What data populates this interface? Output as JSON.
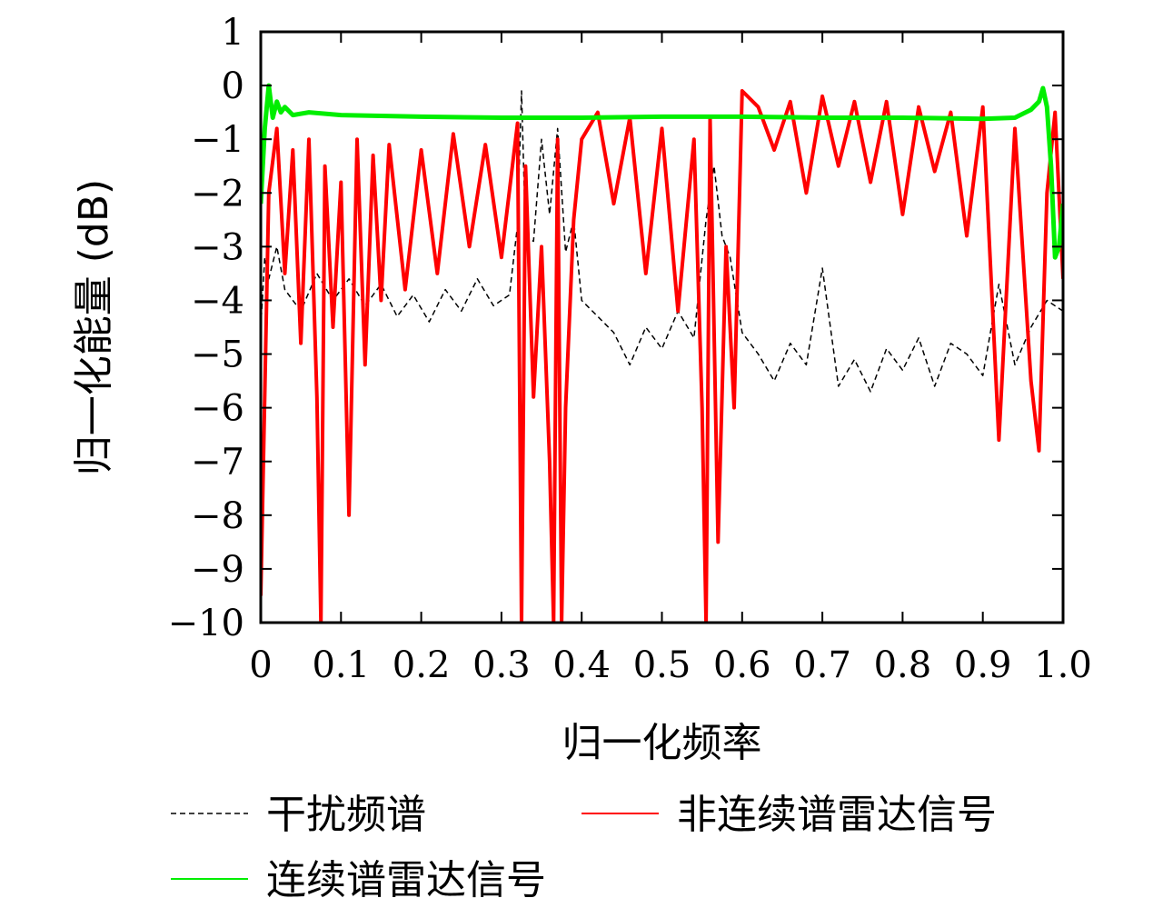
{
  "chart_data": {
    "type": "line",
    "title": "",
    "xlabel": "归一化频率",
    "ylabel": "归一化能量 (dB)",
    "xlim": [
      0,
      1.0
    ],
    "ylim": [
      -10,
      1
    ],
    "xticks": [
      0,
      0.1,
      0.2,
      0.3,
      0.4,
      0.5,
      0.6,
      0.7,
      0.8,
      0.9,
      1.0
    ],
    "xtick_labels": [
      "0",
      "0.1",
      "0.2",
      "0.3",
      "0.4",
      "0.5",
      "0.6",
      "0.7",
      "0.8",
      "0.9",
      "1.0"
    ],
    "yticks": [
      1,
      0,
      -1,
      -2,
      -3,
      -4,
      -5,
      -6,
      -7,
      -8,
      -9,
      -10
    ],
    "ytick_labels": [
      "1",
      "0",
      "−1",
      "−2",
      "−3",
      "−4",
      "−5",
      "−6",
      "−7",
      "−8",
      "−9",
      "−10"
    ],
    "grid": false,
    "legend_position": "bottom",
    "series": [
      {
        "name": "干扰频谱",
        "color": "#000000",
        "style": "dashed",
        "x": [
          0,
          0.005,
          0.01,
          0.02,
          0.03,
          0.05,
          0.07,
          0.09,
          0.11,
          0.13,
          0.15,
          0.17,
          0.19,
          0.21,
          0.23,
          0.25,
          0.27,
          0.29,
          0.31,
          0.32,
          0.325,
          0.33,
          0.34,
          0.35,
          0.36,
          0.37,
          0.38,
          0.39,
          0.4,
          0.42,
          0.44,
          0.46,
          0.48,
          0.5,
          0.52,
          0.54,
          0.555,
          0.565,
          0.575,
          0.585,
          0.6,
          0.62,
          0.64,
          0.66,
          0.68,
          0.7,
          0.72,
          0.74,
          0.76,
          0.78,
          0.8,
          0.82,
          0.84,
          0.86,
          0.88,
          0.9,
          0.92,
          0.94,
          0.96,
          0.98,
          1.0
        ],
        "y": [
          -4.5,
          -3.2,
          -3.6,
          -3.0,
          -3.8,
          -4.2,
          -3.5,
          -4.0,
          -3.6,
          -4.1,
          -3.7,
          -4.3,
          -3.9,
          -4.4,
          -3.8,
          -4.2,
          -3.6,
          -4.1,
          -3.9,
          -2.6,
          -0.1,
          -2.8,
          -2.9,
          -1.0,
          -2.4,
          -0.8,
          -3.1,
          -2.5,
          -4.0,
          -4.3,
          -4.6,
          -5.2,
          -4.5,
          -4.9,
          -4.2,
          -4.7,
          -2.5,
          -1.5,
          -2.8,
          -3.2,
          -4.6,
          -5.0,
          -5.5,
          -4.8,
          -5.2,
          -3.4,
          -5.6,
          -5.1,
          -5.7,
          -4.9,
          -5.3,
          -4.7,
          -5.6,
          -4.8,
          -5.0,
          -5.4,
          -3.7,
          -5.2,
          -4.5,
          -4.0,
          -4.2
        ]
      },
      {
        "name": "非连续谱雷达信号",
        "color": "#ff0000",
        "style": "solid",
        "x": [
          0,
          0.01,
          0.02,
          0.03,
          0.04,
          0.05,
          0.06,
          0.07,
          0.075,
          0.08,
          0.09,
          0.1,
          0.11,
          0.12,
          0.13,
          0.14,
          0.15,
          0.16,
          0.18,
          0.2,
          0.22,
          0.24,
          0.26,
          0.28,
          0.3,
          0.32,
          0.325,
          0.33,
          0.34,
          0.35,
          0.36,
          0.365,
          0.37,
          0.375,
          0.38,
          0.39,
          0.4,
          0.42,
          0.44,
          0.46,
          0.48,
          0.5,
          0.52,
          0.54,
          0.55,
          0.555,
          0.56,
          0.57,
          0.58,
          0.59,
          0.6,
          0.62,
          0.64,
          0.66,
          0.68,
          0.7,
          0.72,
          0.74,
          0.76,
          0.78,
          0.8,
          0.82,
          0.84,
          0.86,
          0.88,
          0.9,
          0.92,
          0.94,
          0.96,
          0.97,
          0.98,
          0.99,
          1.0
        ],
        "y": [
          -9.5,
          -2.0,
          -0.8,
          -3.5,
          -1.2,
          -4.8,
          -1.0,
          -5.8,
          -10.0,
          -1.5,
          -4.5,
          -1.8,
          -8.0,
          -1.0,
          -5.2,
          -1.3,
          -4.0,
          -1.1,
          -3.8,
          -1.2,
          -3.5,
          -0.9,
          -3.0,
          -1.1,
          -3.2,
          -0.7,
          -10.0,
          -1.5,
          -5.8,
          -3.0,
          -7.0,
          -10.0,
          -1.0,
          -10.0,
          -6.0,
          -2.5,
          -1.0,
          -0.5,
          -2.2,
          -0.6,
          -3.5,
          -0.8,
          -4.2,
          -1.0,
          -6.0,
          -10.0,
          -0.6,
          -8.5,
          -3.0,
          -6.0,
          -0.1,
          -0.4,
          -1.2,
          -0.3,
          -2.0,
          -0.2,
          -1.5,
          -0.3,
          -1.8,
          -0.3,
          -2.4,
          -0.4,
          -1.6,
          -0.5,
          -2.8,
          -0.4,
          -6.6,
          -0.8,
          -5.5,
          -6.8,
          -2.0,
          -0.5,
          -3.6
        ]
      },
      {
        "name": "连续谱雷达信号",
        "color": "#00ee00",
        "style": "solid",
        "x": [
          0,
          0.005,
          0.01,
          0.015,
          0.02,
          0.025,
          0.03,
          0.04,
          0.06,
          0.1,
          0.2,
          0.3,
          0.4,
          0.5,
          0.6,
          0.7,
          0.8,
          0.9,
          0.94,
          0.96,
          0.97,
          0.975,
          0.98,
          0.985,
          0.99,
          0.995,
          1.0
        ],
        "y": [
          -2.2,
          -0.8,
          0.0,
          -0.6,
          -0.3,
          -0.5,
          -0.4,
          -0.55,
          -0.5,
          -0.55,
          -0.58,
          -0.6,
          -0.6,
          -0.58,
          -0.58,
          -0.6,
          -0.6,
          -0.62,
          -0.6,
          -0.45,
          -0.3,
          -0.05,
          -0.4,
          -1.5,
          -3.2,
          -3.0,
          -2.2
        ]
      }
    ]
  }
}
